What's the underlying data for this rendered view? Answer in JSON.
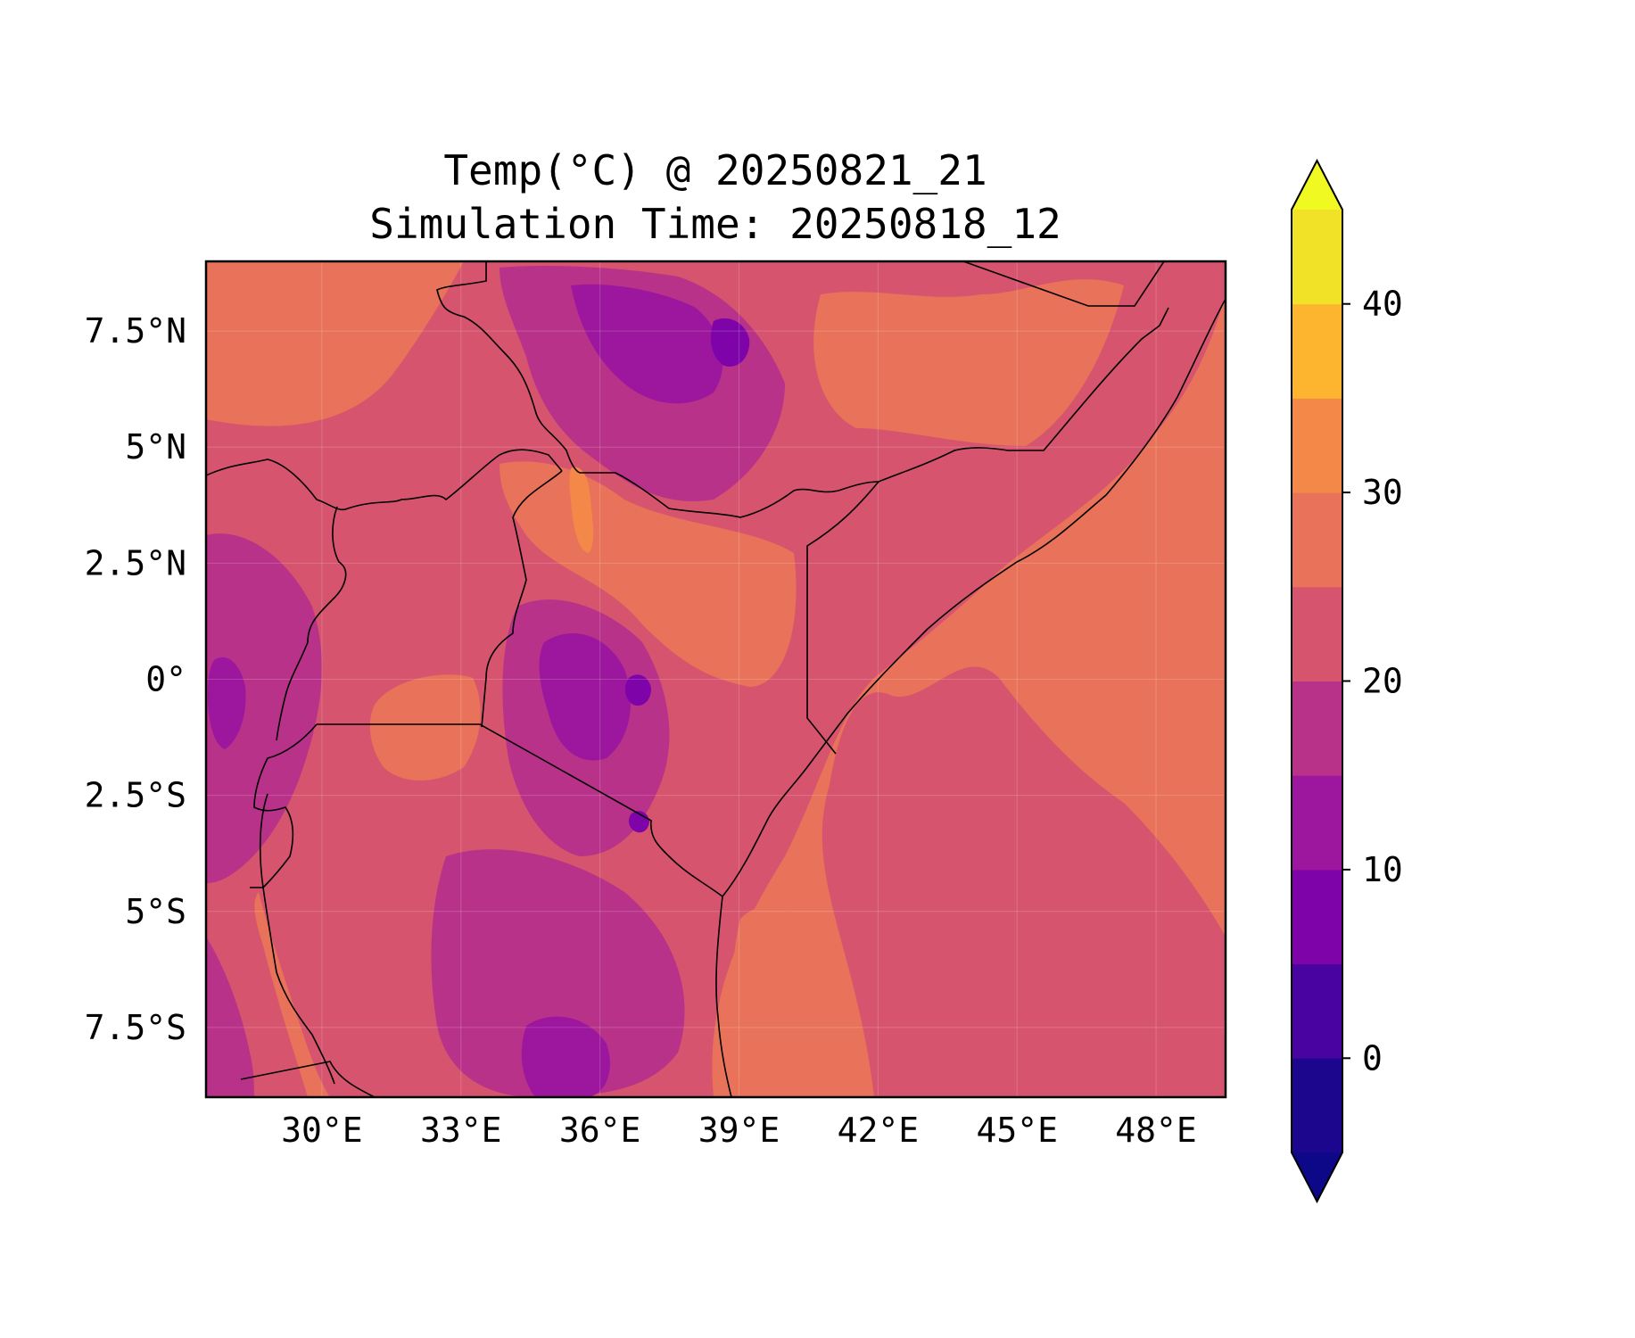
{
  "title": {
    "line1": "Temp(°C) @ 20250821_21",
    "line2": "Simulation Time: 20250818_12"
  },
  "map": {
    "lon_range": [
      27.5,
      49.5
    ],
    "lat_range": [
      -9.0,
      9.0
    ],
    "x_ticks": [
      {
        "value": 30,
        "label": "30°E"
      },
      {
        "value": 33,
        "label": "33°E"
      },
      {
        "value": 36,
        "label": "36°E"
      },
      {
        "value": 39,
        "label": "39°E"
      },
      {
        "value": 42,
        "label": "42°E"
      },
      {
        "value": 45,
        "label": "45°E"
      },
      {
        "value": 48,
        "label": "48°E"
      }
    ],
    "y_ticks": [
      {
        "value": 7.5,
        "label": "7.5°N"
      },
      {
        "value": 5,
        "label": "5°N"
      },
      {
        "value": 2.5,
        "label": "2.5°N"
      },
      {
        "value": 0,
        "label": "0°"
      },
      {
        "value": -2.5,
        "label": "2.5°S"
      },
      {
        "value": -5,
        "label": "5°S"
      },
      {
        "value": -7.5,
        "label": "7.5°S"
      }
    ],
    "grid": true,
    "colors": {
      "ocean_warm": "#e8735a",
      "mid": "#d6546e",
      "highland": "#b83289",
      "cool": "#9c179e",
      "cold": "#7e03a8",
      "hot": "#f48849",
      "border": "#000000"
    }
  },
  "colorbar": {
    "colormap": "plasma",
    "levels": [
      -5,
      0,
      5,
      10,
      15,
      20,
      25,
      30,
      35,
      40,
      45
    ],
    "colors": [
      "#1b068d",
      "#4903a0",
      "#7e03a8",
      "#9c179e",
      "#b83289",
      "#d6546e",
      "#e8735a",
      "#f48849",
      "#fdb42f",
      "#f2e227"
    ],
    "under_color": "#0d0887",
    "over_color": "#f0f921",
    "extend": "both",
    "tick_values": [
      0,
      10,
      20,
      30,
      40
    ],
    "tick_labels": [
      "0",
      "10",
      "20",
      "30",
      "40"
    ]
  }
}
